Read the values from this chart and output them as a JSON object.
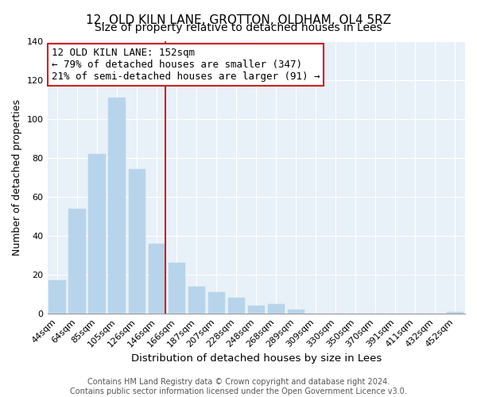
{
  "title": "12, OLD KILN LANE, GROTTON, OLDHAM, OL4 5RZ",
  "subtitle": "Size of property relative to detached houses in Lees",
  "xlabel": "Distribution of detached houses by size in Lees",
  "ylabel": "Number of detached properties",
  "bar_labels": [
    "44sqm",
    "64sqm",
    "85sqm",
    "105sqm",
    "126sqm",
    "146sqm",
    "166sqm",
    "187sqm",
    "207sqm",
    "228sqm",
    "248sqm",
    "268sqm",
    "289sqm",
    "309sqm",
    "330sqm",
    "350sqm",
    "370sqm",
    "391sqm",
    "411sqm",
    "432sqm",
    "452sqm"
  ],
  "bar_values": [
    17,
    54,
    82,
    111,
    74,
    36,
    26,
    14,
    11,
    8,
    4,
    5,
    2,
    0,
    0,
    0,
    0,
    0,
    0,
    0,
    1
  ],
  "bar_color": "#b8d4eb",
  "vline_color": "#cc2222",
  "vline_bar_index": 5,
  "annotation_title": "12 OLD KILN LANE: 152sqm",
  "annotation_line1": "← 79% of detached houses are smaller (347)",
  "annotation_line2": "21% of semi-detached houses are larger (91) →",
  "ylim": [
    0,
    140
  ],
  "yticks": [
    0,
    20,
    40,
    60,
    80,
    100,
    120,
    140
  ],
  "footer_line1": "Contains HM Land Registry data © Crown copyright and database right 2024.",
  "footer_line2": "Contains public sector information licensed under the Open Government Licence v3.0.",
  "title_fontsize": 11,
  "subtitle_fontsize": 10,
  "xlabel_fontsize": 9.5,
  "ylabel_fontsize": 9,
  "tick_fontsize": 8,
  "annotation_fontsize": 9,
  "footer_fontsize": 7
}
